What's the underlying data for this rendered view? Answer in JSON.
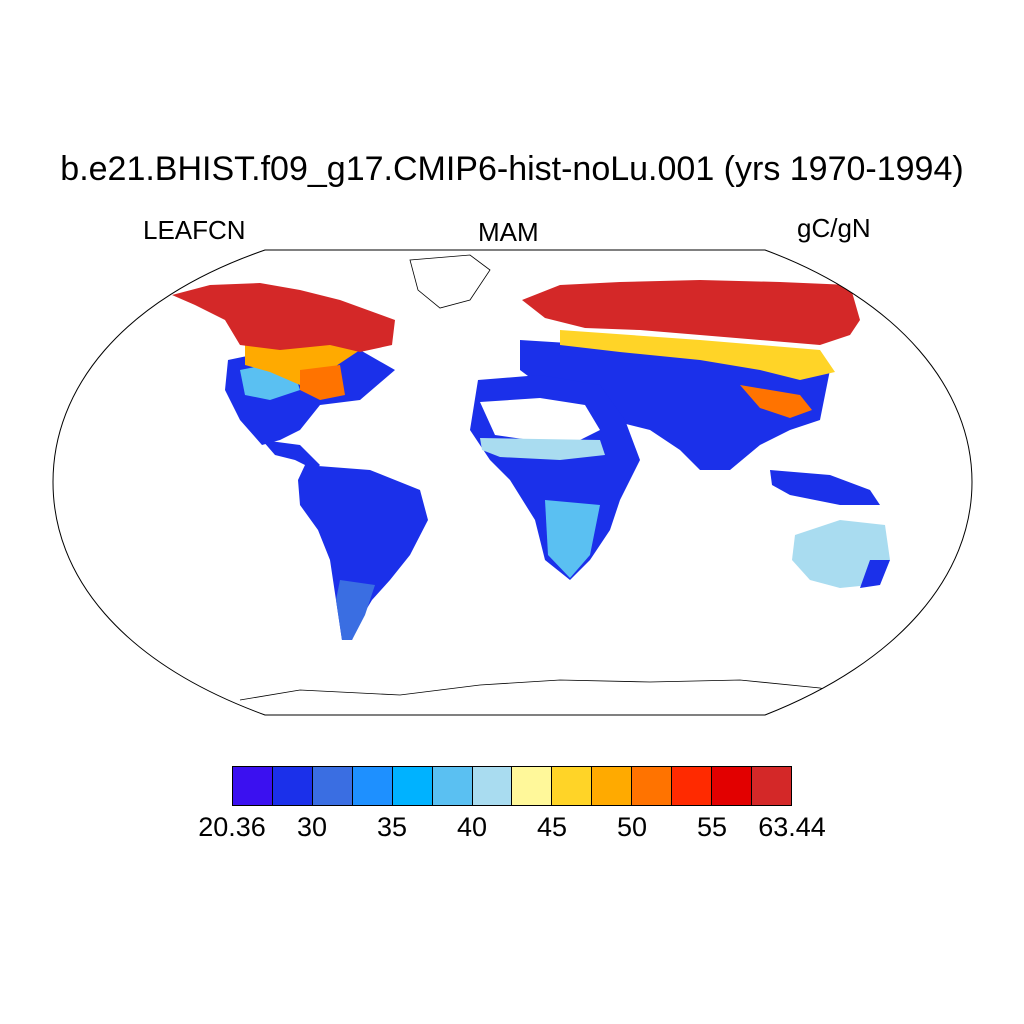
{
  "title": "b.e21.BHIST.f09_g17.CMIP6-hist-noLu.001 (yrs 1970-1994)",
  "left_label": "LEAFCN",
  "center_label": "MAM",
  "right_label": "gC/gN",
  "map_projection": "Robinson",
  "colorbar": {
    "colors": [
      "#3b10f0",
      "#1b30ea",
      "#3a6ee2",
      "#1e90ff",
      "#00b2ff",
      "#5ac0f2",
      "#a9dcf0",
      "#fff89a",
      "#ffd427",
      "#ffaa00",
      "#ff7300",
      "#ff2a00",
      "#e20000",
      "#d42828"
    ],
    "tick_labels": [
      "20.36",
      "30",
      "35",
      "40",
      "45",
      "50",
      "55",
      "63.44"
    ],
    "min": 20.36,
    "max": 63.44
  }
}
